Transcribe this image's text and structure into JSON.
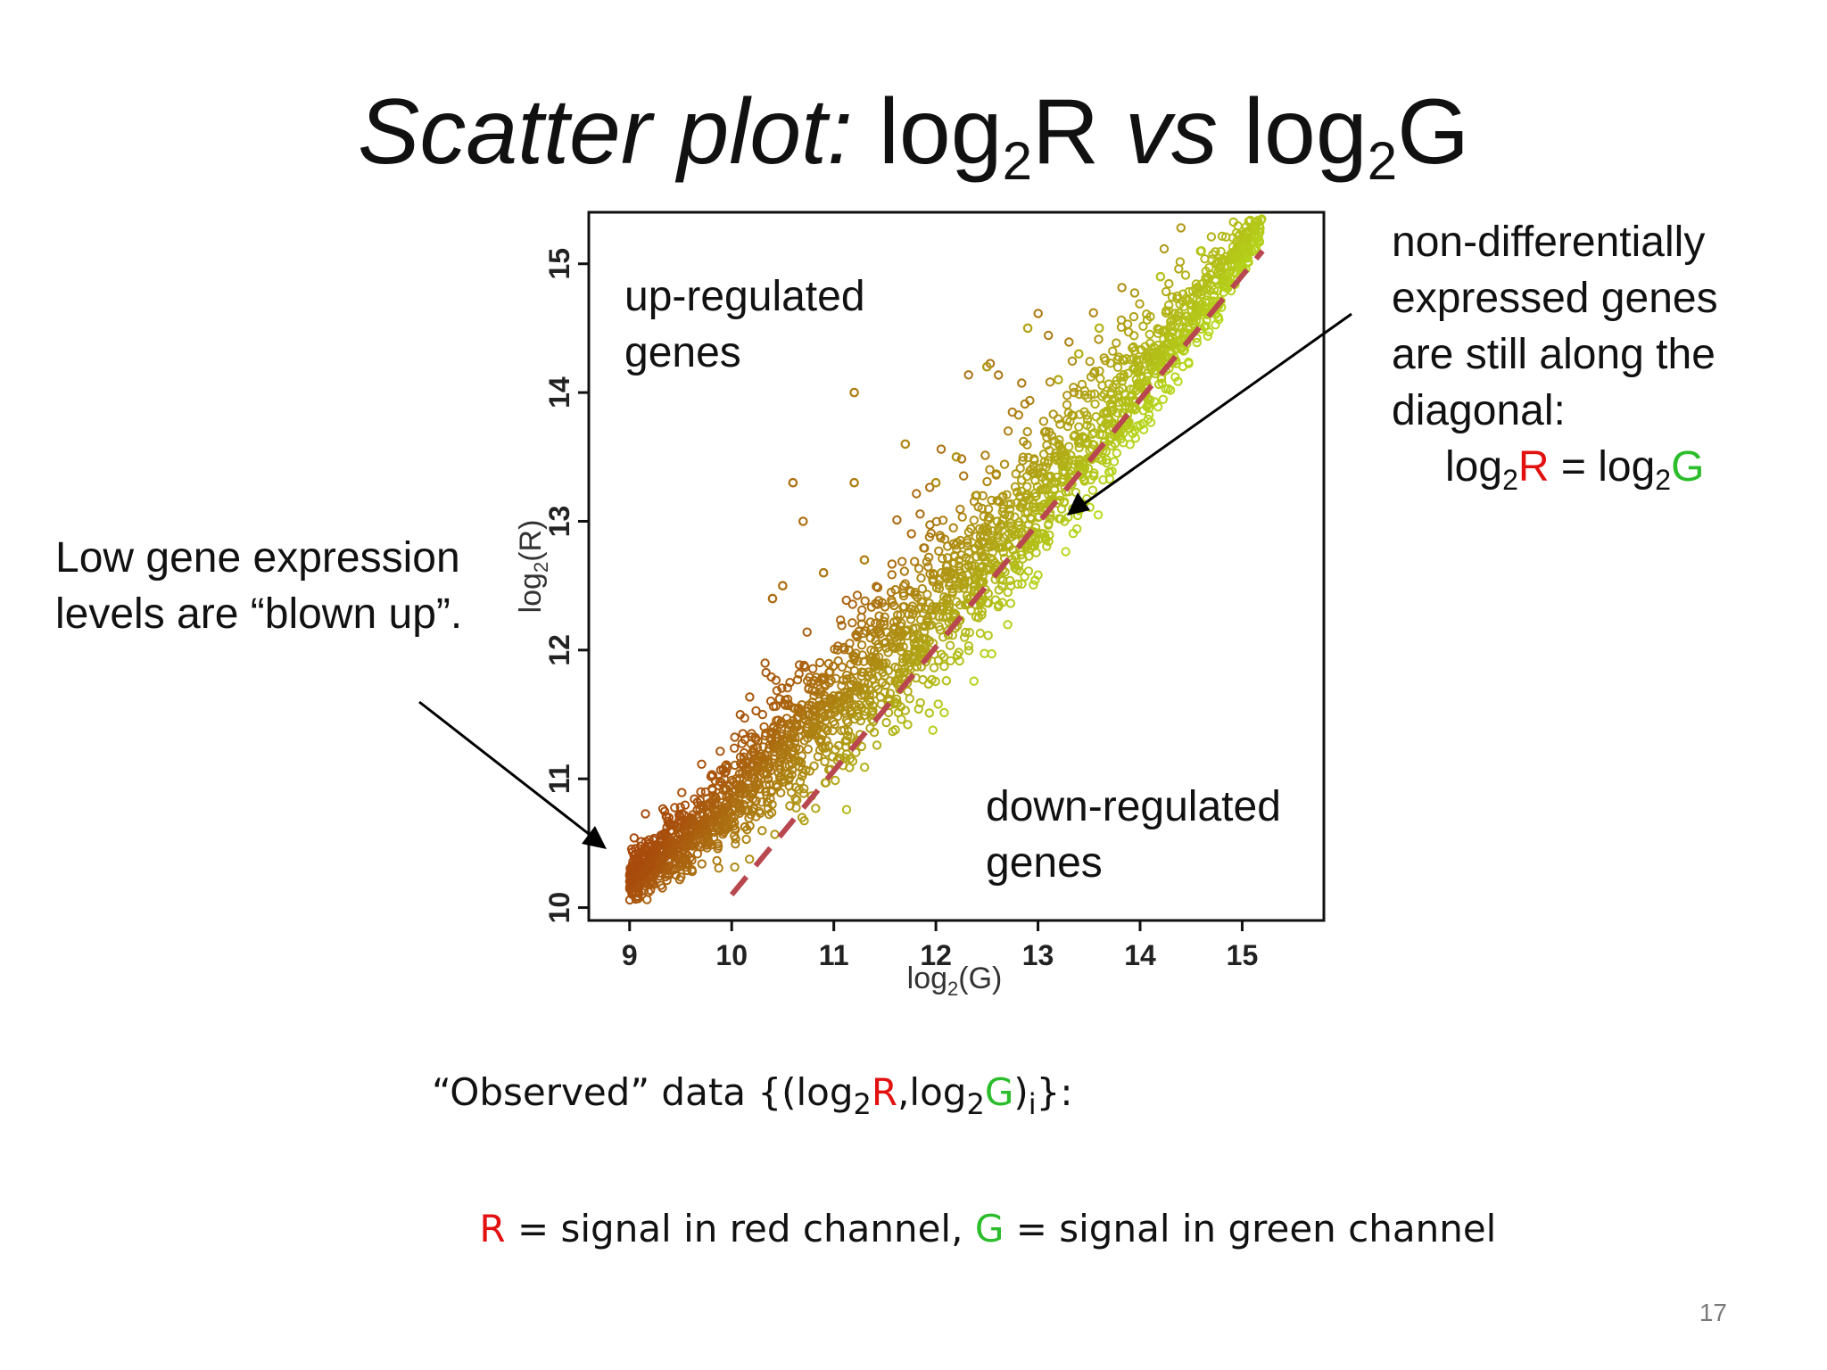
{
  "slide": {
    "title_lead": "Scatter plot:",
    "title_log_r": "log",
    "title_sub_r": "2",
    "title_r": "R",
    "title_vs": "vs",
    "title_log_g": "log",
    "title_sub_g": "2",
    "title_g": "G",
    "page_number": "17"
  },
  "annotations": {
    "up_regulated": [
      "up-regulated",
      "genes"
    ],
    "down_regulated": [
      "down-regulated",
      "genes"
    ],
    "low_expression": [
      "Low gene expression",
      "levels are “blown up”."
    ],
    "non_diff": [
      "non-differentially",
      "expressed genes",
      "are still along the",
      "diagonal:"
    ],
    "equation": {
      "log1": "log",
      "sub1": "2",
      "r": "R",
      "eq": " = ",
      "log2": "log",
      "sub2": "2",
      "g": "G"
    }
  },
  "observed": {
    "prefix": "“Observed” data {(log",
    "sub1": "2",
    "r": "R",
    "comma": ",log",
    "sub2": "2",
    "g": "G",
    "close": ")",
    "sub_i": "i",
    "end": "}:"
  },
  "channels": {
    "r": "R",
    "r_text": " = signal in red channel, ",
    "g": "G",
    "g_text": " = signal in green channel"
  },
  "colors": {
    "red": "#e31010",
    "green": "#2bbd2b",
    "diagonal": "#b8474f",
    "point_low": "#a84a0c",
    "point_high": "#b7e61c"
  },
  "chart_data": {
    "type": "scatter",
    "xlabel": "log2(G)",
    "ylabel": "log2(R)",
    "xlim": [
      8.6,
      15.8
    ],
    "ylim": [
      9.9,
      15.4
    ],
    "xticks": [
      9,
      10,
      11,
      12,
      13,
      14,
      15
    ],
    "yticks": [
      10,
      11,
      12,
      13,
      14,
      15
    ],
    "reference_line": {
      "type": "diagonal",
      "x": [
        10,
        15.2
      ],
      "y": [
        10.1,
        15.1
      ],
      "style": "dashed"
    },
    "points_trend": "dense band of several thousand points curving from (9,10.2) to (15.2,15.0); upper spread (up-regulated) above diagonal, lower band (down-regulated) below; color grades brown to yellow-green with intensity",
    "outliers": [
      [
        10.4,
        12.4
      ],
      [
        10.6,
        13.3
      ],
      [
        10.7,
        13.0
      ],
      [
        11.2,
        13.3
      ],
      [
        11.2,
        14.0
      ],
      [
        11.7,
        13.6
      ],
      [
        12.0,
        13.3
      ],
      [
        12.2,
        13.5
      ],
      [
        12.5,
        14.2
      ],
      [
        12.9,
        14.5
      ],
      [
        13.4,
        14.3
      ],
      [
        13.6,
        14.5
      ],
      [
        11.3,
        12.7
      ],
      [
        10.9,
        12.6
      ],
      [
        10.5,
        12.5
      ],
      [
        12.4,
        13.2
      ],
      [
        12.6,
        13.0
      ],
      [
        13.2,
        14.1
      ],
      [
        14.2,
        14.9
      ],
      [
        14.6,
        15.1
      ]
    ]
  }
}
